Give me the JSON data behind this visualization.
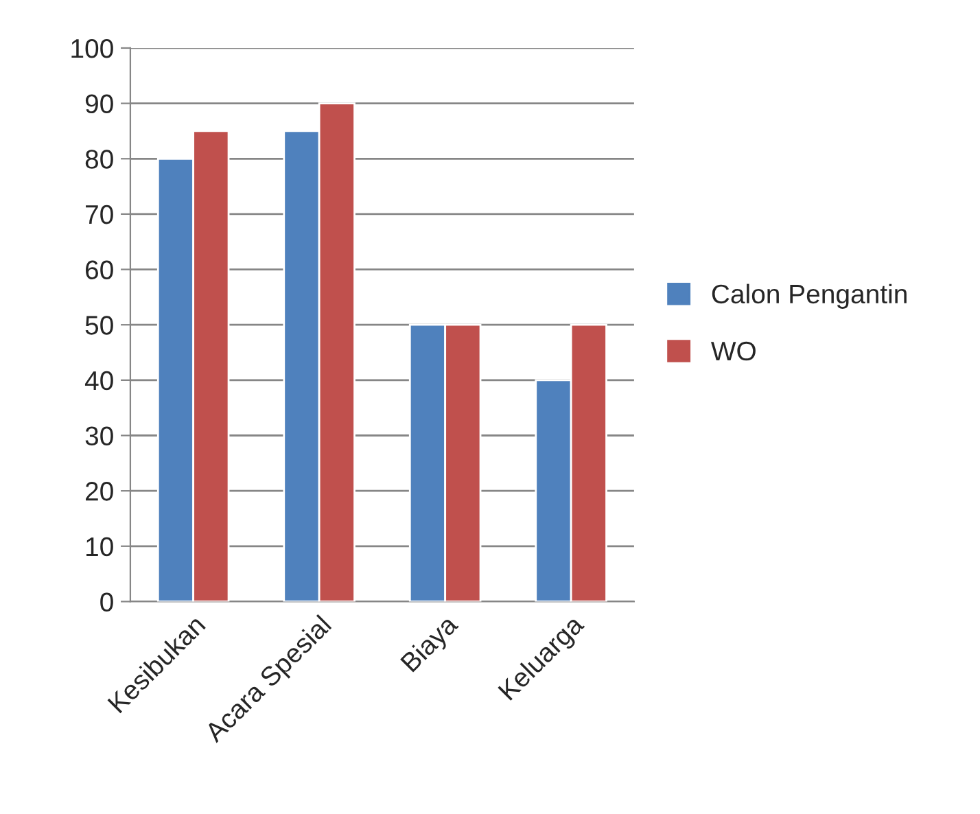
{
  "chart_data": {
    "type": "bar",
    "categories": [
      "Kesibukan",
      "Acara Spesial",
      "Biaya",
      "Keluarga"
    ],
    "series": [
      {
        "name": "Calon Pengantin",
        "color": "#4f81bd",
        "values": [
          80,
          85,
          50,
          40
        ]
      },
      {
        "name": "WO",
        "color": "#c0504d",
        "values": [
          85,
          90,
          50,
          50
        ]
      }
    ],
    "ylim": [
      0,
      100
    ],
    "yticks": [
      0,
      10,
      20,
      30,
      40,
      50,
      60,
      70,
      80,
      90,
      100
    ],
    "grid": "y",
    "legend": "right"
  }
}
